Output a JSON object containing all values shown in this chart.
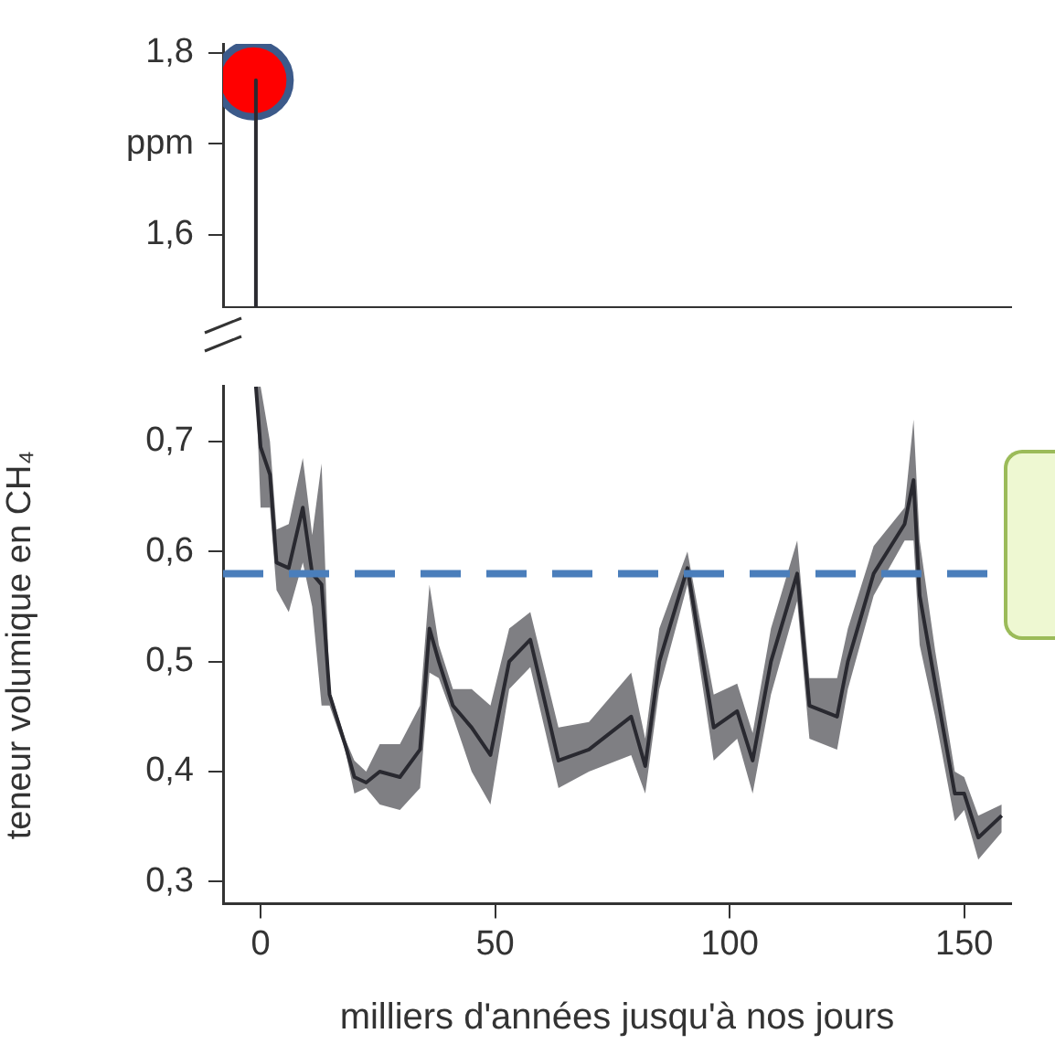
{
  "chart_data": [
    {
      "type": "line",
      "xlim": [
        -8,
        160
      ],
      "ylim": [
        1.52,
        1.81
      ],
      "yticks": [
        {
          "value": 1.6,
          "label": "1,6"
        },
        {
          "value": 1.7,
          "label": "ppm"
        },
        {
          "value": 1.8,
          "label": "1,8"
        }
      ],
      "tick_labels": "y",
      "series": [
        {
          "x": [
            -1,
            -1
          ],
          "values": [
            1.77,
            1.52
          ],
          "color": "#2a2a30"
        },
        {
          "type": "scatter",
          "x": [
            -1.5
          ],
          "values": [
            1.77
          ],
          "color": "#ff0000",
          "marker": "circle"
        }
      ]
    },
    {
      "type": "line",
      "xlabel": "milliers d'années jusqu'à nos jours",
      "ylabel": "teneur volumique en CH₄",
      "xlim": [
        -8,
        160
      ],
      "xticks": [
        0,
        50,
        100,
        150
      ],
      "ylim": [
        0.28,
        0.75
      ],
      "yticks": [
        {
          "value": 0.3,
          "label": "0,3"
        },
        {
          "value": 0.4,
          "label": "0,4"
        },
        {
          "value": 0.5,
          "label": "0,5"
        },
        {
          "value": 0.6,
          "label": "0,6"
        },
        {
          "value": 0.7,
          "label": "0,7"
        }
      ],
      "ref_lines": [
        {
          "axis": "y",
          "value": 0.58,
          "color": "#4a7ebb",
          "line_style": "dashed"
        }
      ],
      "series": [
        {
          "color": "#2a2a30",
          "x": [
            -1,
            0,
            2,
            3.4,
            6,
            9,
            11,
            13,
            14.7,
            18,
            20,
            22.5,
            25.4,
            29.7,
            34,
            36,
            38,
            41,
            45,
            49,
            53,
            57.5,
            63.5,
            70,
            79,
            82,
            85,
            91,
            96.6,
            101.6,
            104.9,
            108.8,
            114.4,
            117,
            122.9,
            125.2,
            130.7,
            137.3,
            139.2,
            140.5,
            143.8,
            148,
            150,
            153,
            158
          ],
          "values": [
            0.75,
            0.695,
            0.67,
            0.59,
            0.585,
            0.64,
            0.58,
            0.57,
            0.47,
            0.425,
            0.395,
            0.39,
            0.4,
            0.395,
            0.42,
            0.53,
            0.5,
            0.46,
            0.44,
            0.415,
            0.5,
            0.52,
            0.41,
            0.42,
            0.45,
            0.405,
            0.5,
            0.585,
            0.44,
            0.455,
            0.41,
            0.5,
            0.58,
            0.46,
            0.45,
            0.5,
            0.58,
            0.625,
            0.665,
            0.56,
            0.48,
            0.38,
            0.38,
            0.34,
            0.36
          ],
          "lower": [
            0.75,
            0.64,
            0.64,
            0.565,
            0.545,
            0.59,
            0.55,
            0.46,
            0.46,
            0.42,
            0.38,
            0.385,
            0.37,
            0.365,
            0.385,
            0.49,
            0.485,
            0.45,
            0.4,
            0.37,
            0.475,
            0.495,
            0.385,
            0.4,
            0.415,
            0.38,
            0.475,
            0.57,
            0.41,
            0.43,
            0.38,
            0.47,
            0.555,
            0.43,
            0.42,
            0.475,
            0.56,
            0.61,
            0.61,
            0.515,
            0.45,
            0.355,
            0.365,
            0.32,
            0.345
          ],
          "upper": [
            0.75,
            0.75,
            0.7,
            0.62,
            0.625,
            0.685,
            0.615,
            0.68,
            0.475,
            0.43,
            0.41,
            0.4,
            0.425,
            0.425,
            0.46,
            0.57,
            0.515,
            0.475,
            0.475,
            0.46,
            0.53,
            0.545,
            0.44,
            0.445,
            0.49,
            0.43,
            0.53,
            0.6,
            0.47,
            0.48,
            0.435,
            0.53,
            0.61,
            0.485,
            0.485,
            0.53,
            0.605,
            0.64,
            0.72,
            0.61,
            0.51,
            0.4,
            0.395,
            0.36,
            0.37
          ]
        }
      ]
    }
  ]
}
